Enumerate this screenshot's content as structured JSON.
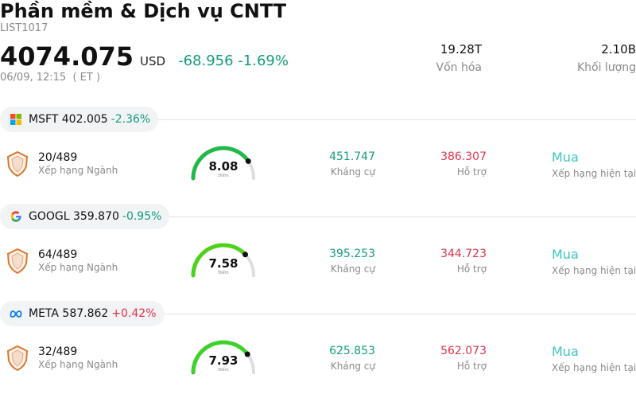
{
  "header": {
    "title": "Phần mềm & Dịch vụ CNTT",
    "code": "LIST1017",
    "price": "4074.075",
    "currency": "USD",
    "change": "-68.956 -1.69%",
    "datetime": "06/09, 12:15  ( ET )",
    "market_cap_value": "19.28T",
    "market_cap_label": "Vốn hóa",
    "volume_value": "2.10B",
    "volume_label": "Khối lượng"
  },
  "stocks": [
    {
      "logo_icon": "microsoft-logo-icon",
      "symbol_price": "MSFT 402.005",
      "change": "-2.36%",
      "rank": "20/489",
      "rank_label": "Xếp hạng Ngành",
      "score": "8.08",
      "score_value": 8.08,
      "score_label": "Điểm",
      "resistance": "451.747",
      "resistance_label": "Kháng cự",
      "support": "386.307",
      "support_label": "Hỗ trợ",
      "recommendation": "Mua",
      "recommendation_label": "Xếp hạng hiện tại"
    },
    {
      "logo_icon": "google-logo-icon",
      "symbol_price": "GOOGL 359.870",
      "change": "-0.95%",
      "rank": "64/489",
      "rank_label": "Xếp hạng Ngành",
      "score": "7.58",
      "score_value": 7.58,
      "score_label": "Điểm",
      "resistance": "395.253",
      "resistance_label": "Kháng cự",
      "support": "344.723",
      "support_label": "Hỗ trợ",
      "recommendation": "Mua",
      "recommendation_label": "Xếp hạng hiện tại"
    },
    {
      "logo_icon": "meta-logo-icon",
      "symbol_price": "META 587.862",
      "change": "+0.42%",
      "rank": "32/489",
      "rank_label": "Xếp hạng Ngành",
      "score": "7.93",
      "score_value": 7.93,
      "score_label": "Điểm",
      "resistance": "625.853",
      "resistance_label": "Kháng cự",
      "support": "562.073",
      "support_label": "Hỗ trợ",
      "recommendation": "Mua",
      "recommendation_label": "Xếp hạng hiện tại"
    }
  ],
  "colors": {
    "negative": "#139c7e",
    "positive": "#e0334a",
    "recommendation": "#3cc6c0",
    "gauge_fill": "#22b84a",
    "gauge_track": "#dcdde2"
  }
}
